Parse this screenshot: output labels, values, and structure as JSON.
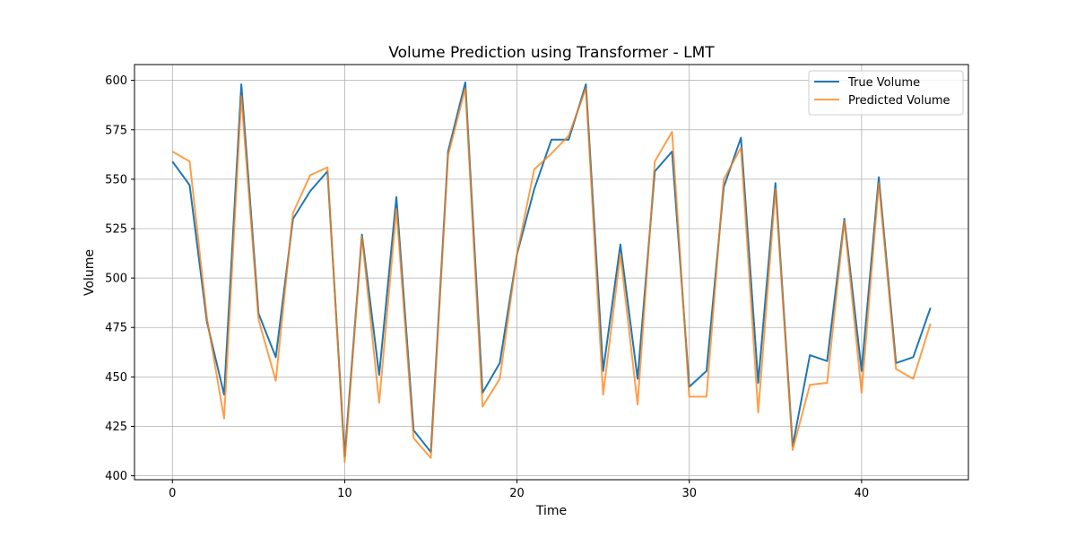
{
  "chart_data": {
    "type": "line",
    "title": "Volume Prediction using Transformer - LMT",
    "xlabel": "Time",
    "ylabel": "Volume",
    "xlim": [
      -2.2,
      46.2
    ],
    "ylim": [
      398,
      608
    ],
    "xticks": [
      0,
      10,
      20,
      30,
      40
    ],
    "yticks": [
      400,
      425,
      450,
      475,
      500,
      525,
      550,
      575,
      600
    ],
    "grid": true,
    "legend_position": "top-right",
    "x": [
      0,
      1,
      2,
      3,
      4,
      5,
      6,
      7,
      8,
      9,
      10,
      11,
      12,
      13,
      14,
      15,
      16,
      17,
      18,
      19,
      20,
      21,
      22,
      23,
      24,
      25,
      26,
      27,
      28,
      29,
      30,
      31,
      32,
      33,
      34,
      35,
      36,
      37,
      38,
      39,
      40,
      41,
      42,
      43,
      44
    ],
    "series": [
      {
        "name": "True Volume",
        "color": "#1f77b4",
        "values": [
          559,
          547,
          478,
          441,
          598,
          482,
          460,
          530,
          544,
          554,
          410,
          522,
          451,
          541,
          423,
          412,
          564,
          599,
          442,
          457,
          512,
          545,
          570,
          570,
          598,
          453,
          517,
          449,
          554,
          564,
          445,
          453,
          546,
          571,
          447,
          548,
          415,
          461,
          458,
          530,
          453,
          551,
          457,
          460,
          485
        ]
      },
      {
        "name": "Predicted Volume",
        "color": "#ff7f0e",
        "values": [
          564,
          559,
          480,
          429,
          592,
          479,
          448,
          533,
          552,
          556,
          407,
          521,
          437,
          535,
          419,
          409,
          562,
          596,
          435,
          449,
          512,
          555,
          563,
          572,
          596,
          441,
          512,
          436,
          559,
          574,
          440,
          440,
          550,
          566,
          432,
          545,
          413,
          446,
          447,
          529,
          442,
          548,
          454,
          449,
          477
        ]
      }
    ]
  }
}
